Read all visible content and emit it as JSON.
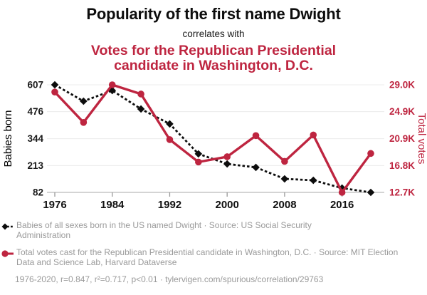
{
  "header": {
    "title": "Popularity of the first name Dwight",
    "subtitle": "correlates with",
    "red_title_line1": "Votes for the Republican Presidential",
    "red_title_line2": "candidate in Washington, D.C."
  },
  "colors": {
    "red": "#be2540",
    "black": "#0d0d0d",
    "legend_gray": "#9a9a9a",
    "grid": "#ececec",
    "axis_line": "#aaaaaa",
    "tick": "#999999"
  },
  "chart_data": {
    "type": "line",
    "x": [
      1976,
      1980,
      1984,
      1988,
      1992,
      1996,
      2000,
      2004,
      2008,
      2012,
      2016,
      2020
    ],
    "series": [
      {
        "key": "babies",
        "axis": "left",
        "style": "dashed-line-diamond-markers",
        "color": "#0d0d0d",
        "values": [
          607,
          527,
          579,
          489,
          416,
          270,
          221,
          204,
          148,
          141,
          103,
          82
        ]
      },
      {
        "key": "votes",
        "axis": "right",
        "style": "solid-line-circle-markers",
        "color": "#be2540",
        "unit": "thousands",
        "values_k": [
          27.9,
          23.3,
          29.0,
          27.6,
          20.7,
          17.3,
          18.1,
          21.3,
          17.4,
          21.4,
          12.7,
          18.6
        ]
      }
    ],
    "left_axis": {
      "label": "Babies born",
      "ticks": [
        607,
        476,
        344,
        213,
        82
      ],
      "range": [
        82,
        607
      ]
    },
    "right_axis": {
      "label": "Total votes",
      "tick_labels": [
        "29.0K",
        "24.9K",
        "20.9K",
        "16.8K",
        "12.7K"
      ],
      "range_k": [
        12.7,
        29.0
      ]
    },
    "x_axis": {
      "tick_years": [
        1976,
        1984,
        1992,
        2000,
        2008,
        2016
      ],
      "range": [
        1976,
        2020
      ]
    },
    "grid": true,
    "legend_position": "bottom"
  },
  "legend": {
    "items": [
      {
        "marker": "black-diamond-dashed",
        "text": "Babies of all sexes born in the US named Dwight · Source: US Social Security Administration"
      },
      {
        "marker": "red-circle-solid",
        "text": "Total votes cast for the Republican Presidential candidate in Washington, D.C. · Source: MIT Election Data and Science Lab, Harvard Dataverse"
      }
    ]
  },
  "footer": {
    "text": "1976-2020, r=0.847, r²=0.717, p<0.01 · tylervigen.com/spurious/correlation/29763"
  }
}
